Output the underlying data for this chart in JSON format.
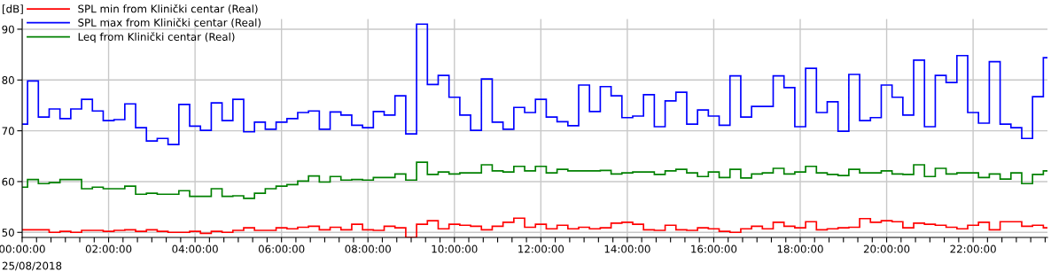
{
  "chart_data": {
    "type": "step",
    "ylabel": "[dB]",
    "x": [
      0,
      0.125,
      0.375,
      0.625,
      0.875,
      1.125,
      1.375,
      1.625,
      1.875,
      2.125,
      2.375,
      2.625,
      2.875,
      3.125,
      3.375,
      3.625,
      3.875,
      4.125,
      4.375,
      4.625,
      4.875,
      5.125,
      5.375,
      5.625,
      5.875,
      6.125,
      6.375,
      6.625,
      6.875,
      7.125,
      7.375,
      7.625,
      7.875,
      8.125,
      8.375,
      8.625,
      8.875,
      9.125,
      9.375,
      9.625,
      9.875,
      10.125,
      10.375,
      10.625,
      10.875,
      11.125,
      11.375,
      11.625,
      11.875,
      12.125,
      12.375,
      12.625,
      12.875,
      13.125,
      13.375,
      13.625,
      13.875,
      14.125,
      14.375,
      14.625,
      14.875,
      15.125,
      15.375,
      15.625,
      15.875,
      16.125,
      16.375,
      16.625,
      16.875,
      17.125,
      17.375,
      17.625,
      17.875,
      18.125,
      18.375,
      18.625,
      18.875,
      19.125,
      19.375,
      19.625,
      19.875,
      20.125,
      20.375,
      20.625,
      20.875,
      21.125,
      21.375,
      21.625,
      21.875,
      22.125,
      22.375,
      22.625,
      22.875,
      23.125,
      23.375,
      23.625
    ],
    "series": [
      {
        "name": "SPL min from Klinički centar (Real)",
        "color": "#ff0000",
        "values": [
          50.5,
          50.5,
          50.5,
          50.0,
          50.2,
          50.0,
          50.4,
          50.4,
          50.2,
          50.4,
          50.5,
          50.2,
          50.5,
          50.2,
          50.0,
          50.0,
          50.2,
          49.8,
          50.2,
          50.0,
          50.4,
          50.9,
          50.4,
          50.4,
          50.9,
          50.7,
          51.0,
          51.2,
          50.5,
          51.0,
          50.5,
          51.6,
          50.5,
          50.4,
          51.2,
          50.9,
          49.0,
          51.6,
          52.3,
          50.7,
          51.6,
          51.4,
          51.2,
          50.5,
          51.2,
          52.0,
          52.8,
          51.0,
          51.6,
          50.7,
          51.4,
          50.7,
          51.0,
          50.7,
          50.9,
          51.8,
          52.0,
          51.6,
          50.5,
          50.4,
          51.4,
          50.5,
          50.4,
          50.9,
          50.7,
          50.2,
          50.0,
          50.7,
          51.2,
          50.7,
          52.0,
          51.2,
          50.9,
          52.1,
          50.5,
          50.7,
          50.9,
          51.0,
          52.7,
          52.0,
          52.3,
          52.1,
          50.9,
          51.8,
          51.6,
          51.4,
          51.0,
          50.7,
          51.4,
          52.0,
          50.5,
          52.1,
          52.1,
          51.2,
          51.4,
          50.9
        ]
      },
      {
        "name": "SPL max from Klinički centar (Real)",
        "color": "#0000ff",
        "values": [
          71.3,
          79.8,
          72.7,
          74.3,
          72.4,
          74.3,
          76.2,
          73.9,
          72.0,
          72.2,
          75.3,
          70.6,
          68.0,
          68.5,
          67.3,
          75.2,
          70.9,
          70.1,
          75.5,
          72.0,
          76.2,
          69.8,
          71.7,
          70.3,
          71.7,
          72.4,
          73.6,
          73.9,
          70.3,
          73.7,
          73.1,
          71.1,
          70.6,
          73.8,
          73.1,
          76.9,
          69.4,
          91.0,
          79.1,
          80.9,
          76.6,
          73.1,
          70.1,
          80.2,
          71.7,
          70.3,
          74.6,
          73.6,
          76.2,
          72.7,
          71.8,
          71.0,
          79.0,
          73.8,
          78.7,
          76.9,
          72.6,
          72.9,
          77.1,
          70.8,
          75.9,
          77.6,
          71.3,
          74.1,
          72.9,
          71.1,
          80.8,
          72.7,
          74.8,
          74.8,
          80.8,
          78.5,
          70.8,
          82.3,
          73.6,
          75.7,
          69.9,
          81.1,
          72.0,
          72.6,
          79.0,
          76.6,
          73.1,
          83.9,
          70.8,
          80.9,
          79.5,
          84.8,
          73.6,
          71.5,
          83.6,
          71.3,
          70.6,
          68.5,
          76.7,
          84.4
        ]
      },
      {
        "name": "Leq from Klinički centar (Real)",
        "color": "#008000",
        "values": [
          58.9,
          60.4,
          59.6,
          59.8,
          60.4,
          60.4,
          58.6,
          58.9,
          58.6,
          58.6,
          59.1,
          57.5,
          57.7,
          57.5,
          57.5,
          58.2,
          57.1,
          57.1,
          58.6,
          57.1,
          57.2,
          56.7,
          57.7,
          58.6,
          59.1,
          59.4,
          60.1,
          61.1,
          59.9,
          61.0,
          60.3,
          60.4,
          60.3,
          60.8,
          60.8,
          61.5,
          60.3,
          63.8,
          61.4,
          61.9,
          61.5,
          61.7,
          61.7,
          63.3,
          62.1,
          61.9,
          63.0,
          62.1,
          63.0,
          61.7,
          62.4,
          62.1,
          62.1,
          62.1,
          62.2,
          61.5,
          61.7,
          61.9,
          61.9,
          61.4,
          62.1,
          62.4,
          61.7,
          61.0,
          61.9,
          60.8,
          62.4,
          60.7,
          61.5,
          61.7,
          62.6,
          61.5,
          61.9,
          63.0,
          61.7,
          61.4,
          61.2,
          62.4,
          61.7,
          61.7,
          62.1,
          61.5,
          61.4,
          63.3,
          61.0,
          62.6,
          61.5,
          61.7,
          61.7,
          60.8,
          61.5,
          60.5,
          61.7,
          59.6,
          61.4,
          62.1
        ]
      }
    ],
    "xlim": [
      0,
      23.72
    ],
    "ylim": [
      49,
      92
    ],
    "xticks": [
      {
        "value": 0,
        "label": "00:00:00"
      },
      {
        "value": 0.333,
        "label": null
      },
      {
        "value": 0.667,
        "label": null
      },
      {
        "value": 1,
        "label": null
      },
      {
        "value": 1.333,
        "label": null
      },
      {
        "value": 1.667,
        "label": null
      },
      {
        "value": 2,
        "label": "02:00:00"
      },
      {
        "value": 2.333,
        "label": null
      },
      {
        "value": 2.667,
        "label": null
      },
      {
        "value": 3,
        "label": null
      },
      {
        "value": 3.333,
        "label": null
      },
      {
        "value": 3.667,
        "label": null
      },
      {
        "value": 4,
        "label": "04:00:00"
      },
      {
        "value": 4.333,
        "label": null
      },
      {
        "value": 4.667,
        "label": null
      },
      {
        "value": 5,
        "label": null
      },
      {
        "value": 5.333,
        "label": null
      },
      {
        "value": 5.667,
        "label": null
      },
      {
        "value": 6,
        "label": "06:00:00"
      },
      {
        "value": 6.333,
        "label": null
      },
      {
        "value": 6.667,
        "label": null
      },
      {
        "value": 7,
        "label": null
      },
      {
        "value": 7.333,
        "label": null
      },
      {
        "value": 7.667,
        "label": null
      },
      {
        "value": 8,
        "label": "08:00:00"
      },
      {
        "value": 8.333,
        "label": null
      },
      {
        "value": 8.667,
        "label": null
      },
      {
        "value": 9,
        "label": null
      },
      {
        "value": 9.333,
        "label": null
      },
      {
        "value": 9.667,
        "label": null
      },
      {
        "value": 10,
        "label": "10:00:00"
      },
      {
        "value": 10.333,
        "label": null
      },
      {
        "value": 10.667,
        "label": null
      },
      {
        "value": 11,
        "label": null
      },
      {
        "value": 11.333,
        "label": null
      },
      {
        "value": 11.667,
        "label": null
      },
      {
        "value": 12,
        "label": "12:00:00"
      },
      {
        "value": 12.333,
        "label": null
      },
      {
        "value": 12.667,
        "label": null
      },
      {
        "value": 13,
        "label": null
      },
      {
        "value": 13.333,
        "label": null
      },
      {
        "value": 13.667,
        "label": null
      },
      {
        "value": 14,
        "label": "14:00:00"
      },
      {
        "value": 14.333,
        "label": null
      },
      {
        "value": 14.667,
        "label": null
      },
      {
        "value": 15,
        "label": null
      },
      {
        "value": 15.333,
        "label": null
      },
      {
        "value": 15.667,
        "label": null
      },
      {
        "value": 16,
        "label": "16:00:00"
      },
      {
        "value": 16.333,
        "label": null
      },
      {
        "value": 16.667,
        "label": null
      },
      {
        "value": 17,
        "label": null
      },
      {
        "value": 17.333,
        "label": null
      },
      {
        "value": 17.667,
        "label": null
      },
      {
        "value": 18,
        "label": "18:00:00"
      },
      {
        "value": 18.333,
        "label": null
      },
      {
        "value": 18.667,
        "label": null
      },
      {
        "value": 19,
        "label": null
      },
      {
        "value": 19.333,
        "label": null
      },
      {
        "value": 19.667,
        "label": null
      },
      {
        "value": 20,
        "label": "20:00:00"
      },
      {
        "value": 20.333,
        "label": null
      },
      {
        "value": 20.667,
        "label": null
      },
      {
        "value": 21,
        "label": null
      },
      {
        "value": 21.333,
        "label": null
      },
      {
        "value": 21.667,
        "label": null
      },
      {
        "value": 22,
        "label": "22:00:00"
      },
      {
        "value": 22.333,
        "label": null
      },
      {
        "value": 22.667,
        "label": null
      },
      {
        "value": 23,
        "label": null
      },
      {
        "value": 23.333,
        "label": null
      },
      {
        "value": 23.667,
        "label": null
      }
    ],
    "yticks": [
      50,
      60,
      70,
      80,
      90
    ],
    "grid": true,
    "legend": "top left",
    "annotations": [
      "25/08/2018"
    ]
  }
}
